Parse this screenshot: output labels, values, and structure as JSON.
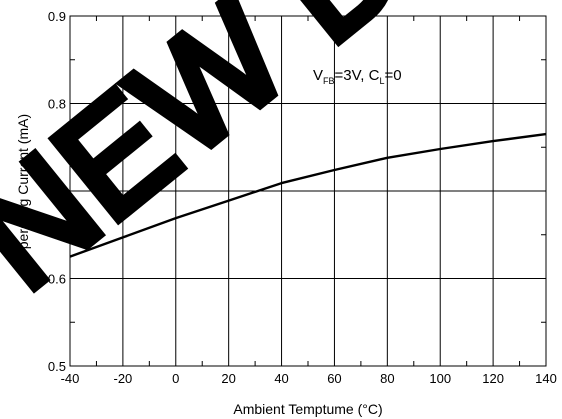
{
  "chart_data": {
    "type": "line",
    "title": "",
    "xlabel": "Ambient Temptume (°C)",
    "ylabel": "Operating Current (mA)",
    "xlim": [
      -40,
      140
    ],
    "ylim": [
      0.5,
      0.9
    ],
    "x_ticks": [
      -40,
      -20,
      0,
      20,
      40,
      60,
      80,
      100,
      120,
      140
    ],
    "y_ticks": [
      0.5,
      0.6,
      0.7,
      0.8,
      0.9
    ],
    "grid": true,
    "annotation": {
      "parts": [
        {
          "text": "V",
          "sub": false
        },
        {
          "text": "FB",
          "sub": true
        },
        {
          "text": "=3V, C",
          "sub": false
        },
        {
          "text": "L",
          "sub": true
        },
        {
          "text": "=0",
          "sub": false
        }
      ]
    },
    "series": [
      {
        "x": [
          -40,
          -20,
          0,
          20,
          40,
          60,
          80,
          100,
          120,
          140
        ],
        "y": [
          0.625,
          0.647,
          0.669,
          0.689,
          0.709,
          0.724,
          0.738,
          0.748,
          0.757,
          0.765
        ]
      }
    ],
    "colors": {
      "line": "#000000",
      "grid": "#000000",
      "watermark": "#000000"
    }
  },
  "watermark": {
    "text": "NEW DESIGN"
  }
}
